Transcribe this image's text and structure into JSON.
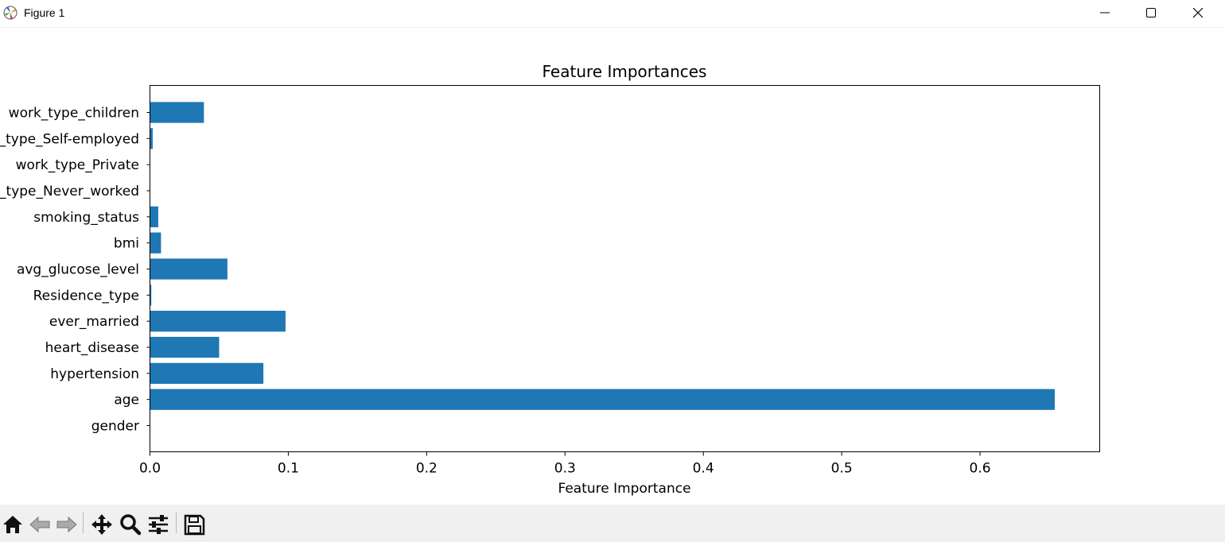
{
  "window": {
    "title": "Figure 1",
    "icons": [
      "matplotlib-logo-icon",
      "minimize-icon",
      "maximize-icon",
      "close-icon"
    ]
  },
  "toolbar": {
    "icons": [
      "home-icon",
      "back-arrow-icon",
      "forward-arrow-icon",
      "pan-move-icon",
      "zoom-magnifier-icon",
      "configure-subplots-icon",
      "save-floppy-icon"
    ]
  },
  "colors": {
    "bar": "#1f77b4",
    "axes": "#000000",
    "toolbar_bg": "#f0f0f0"
  },
  "chart_data": {
    "type": "bar",
    "orientation": "horizontal",
    "title": "Feature Importances",
    "xlabel": "Feature Importance",
    "ylabel": "",
    "xlim": [
      0,
      0.6865
    ],
    "xticks": [
      "0.0",
      "0.1",
      "0.2",
      "0.3",
      "0.4",
      "0.5",
      "0.6"
    ],
    "grid": false,
    "categories": [
      "gender",
      "age",
      "hypertension",
      "heart_disease",
      "ever_married",
      "Residence_type",
      "avg_glucose_level",
      "bmi",
      "smoking_status",
      "work_type_Never_worked",
      "work_type_Private",
      "work_type_Self-employed",
      "work_type_children"
    ],
    "values": [
      0.0,
      0.654,
      0.082,
      0.05,
      0.098,
      0.001,
      0.056,
      0.008,
      0.006,
      0.0,
      0.0,
      0.002,
      0.039
    ]
  }
}
